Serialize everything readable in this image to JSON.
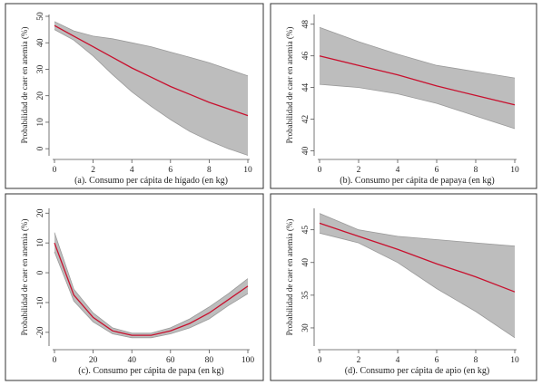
{
  "figure": {
    "colors": {
      "line": "#c8102e",
      "band": "#bdbdbd",
      "axis": "#555555",
      "border": "#333333"
    }
  },
  "chart_data": [
    {
      "type": "line",
      "caption": "(a). Consumo per cápita de hígado (en kg)",
      "xlabel": "(a). Consumo per cápita de hígado (en kg)",
      "ylabel": "Probabilidad de caer en anemia (%)",
      "xlim": [
        0,
        10
      ],
      "ylim": [
        -2,
        50
      ],
      "xticks": [
        "0",
        "2",
        "4",
        "6",
        "8",
        "10"
      ],
      "yticks": [
        "0",
        "10",
        "20",
        "30",
        "40",
        "50"
      ],
      "series": [
        {
          "x": [
            0,
            1,
            2,
            3,
            4,
            5,
            6,
            7,
            8,
            9,
            10
          ],
          "values": [
            46.5,
            42.5,
            38.5,
            34.5,
            30.5,
            27.0,
            23.5,
            20.5,
            17.5,
            15.0,
            12.5
          ],
          "upper": [
            48.0,
            44.5,
            42.5,
            41.5,
            40.0,
            38.5,
            36.5,
            34.5,
            32.5,
            30.0,
            27.5
          ],
          "lower": [
            45.0,
            41.0,
            35.0,
            28.0,
            21.5,
            16.0,
            11.0,
            6.5,
            3.0,
            0.0,
            -2.5
          ]
        }
      ]
    },
    {
      "type": "line",
      "caption": "(b). Consumo per cápita de papaya (en kg)",
      "xlabel": "(b). Consumo per cápita de papaya (en kg)",
      "ylabel": "Probabilidad de caer en anemia (%)",
      "xlim": [
        0,
        10
      ],
      "ylim": [
        39.8,
        48.5
      ],
      "xticks": [
        "0",
        "2",
        "4",
        "6",
        "8",
        "10"
      ],
      "yticks": [
        "40",
        "42",
        "44",
        "46",
        "48"
      ],
      "series": [
        {
          "x": [
            0,
            2,
            4,
            6,
            8,
            10
          ],
          "values": [
            46.0,
            45.4,
            44.8,
            44.1,
            43.5,
            42.9
          ],
          "upper": [
            47.8,
            46.9,
            46.1,
            45.4,
            45.0,
            44.6
          ],
          "lower": [
            44.2,
            44.0,
            43.6,
            43.0,
            42.2,
            41.4
          ]
        }
      ]
    },
    {
      "type": "line",
      "caption": "(c). Consumo per cápita de papa (en kg)",
      "xlabel": "(c). Consumo per cápita de papa (en kg)",
      "ylabel": "Probabilidad de caer en anemia (%)",
      "xlim": [
        0,
        100
      ],
      "ylim": [
        -24,
        21
      ],
      "xticks": [
        "0",
        "20",
        "40",
        "60",
        "80",
        "100"
      ],
      "yticks": [
        "-20",
        "-10",
        "0",
        "10",
        "20"
      ],
      "series": [
        {
          "x": [
            0,
            10,
            20,
            30,
            40,
            50,
            60,
            70,
            80,
            90,
            100
          ],
          "values": [
            10.0,
            -7.5,
            -15.0,
            -19.5,
            -21.0,
            -21.0,
            -19.5,
            -17.0,
            -13.5,
            -9.0,
            -4.5
          ],
          "upper": [
            13.5,
            -5.5,
            -13.5,
            -18.5,
            -20.3,
            -20.3,
            -18.5,
            -15.5,
            -11.5,
            -7.0,
            -2.0
          ],
          "lower": [
            7.0,
            -9.5,
            -16.5,
            -20.5,
            -21.8,
            -21.8,
            -20.5,
            -18.5,
            -15.5,
            -11.0,
            -7.0
          ]
        }
      ]
    },
    {
      "type": "line",
      "caption": "(d). Consumo per cápita de apio (en kg)",
      "xlabel": "(d). Consumo per cápita de apio (en kg)",
      "ylabel": "Probabilidad de caer en anemia (%)",
      "xlim": [
        0,
        10
      ],
      "ylim": [
        27.5,
        48
      ],
      "xticks": [
        "0",
        "2",
        "4",
        "6",
        "8",
        "10"
      ],
      "yticks": [
        "30",
        "35",
        "40",
        "45"
      ],
      "series": [
        {
          "x": [
            0,
            2,
            4,
            6,
            8,
            10
          ],
          "values": [
            46.0,
            44.0,
            42.0,
            39.8,
            37.8,
            35.5
          ],
          "upper": [
            47.5,
            45.0,
            44.0,
            43.5,
            43.0,
            42.5
          ],
          "lower": [
            44.5,
            43.0,
            40.0,
            36.0,
            32.5,
            28.5
          ]
        }
      ]
    }
  ]
}
